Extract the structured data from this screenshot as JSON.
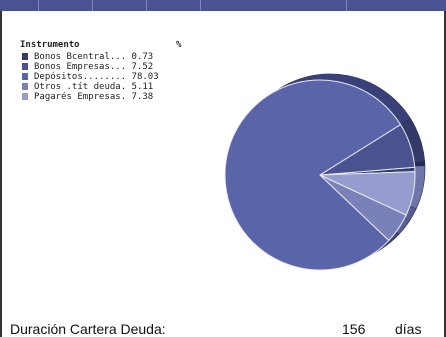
{
  "chart_data": {
    "type": "pie",
    "legend_header": {
      "label": "Instrumento",
      "value": "%"
    },
    "slices": [
      {
        "label": "Bonos Bcentral...",
        "value": 0.73,
        "value_text": "0.73",
        "color": "#323a6e",
        "side": "#23294f"
      },
      {
        "label": "Bonos Empresas...",
        "value": 7.52,
        "value_text": "7.52",
        "color": "#4a5290",
        "side": "#343a68"
      },
      {
        "label": "Depósitos........",
        "value": 78.03,
        "value_text": "78.03",
        "color": "#5a64a8",
        "side": "#39407a"
      },
      {
        "label": "Otros .tít deuda.",
        "value": 5.11,
        "value_text": "5.11",
        "color": "#7a80b8",
        "side": "#575d90"
      },
      {
        "label": "Pagarés Empresas.",
        "value": 7.38,
        "value_text": "7.38",
        "color": "#969cce",
        "side": "#6f75a8"
      }
    ]
  },
  "footer": {
    "label": "Duración Cartera Deuda:",
    "value": "156",
    "unit": "días"
  }
}
